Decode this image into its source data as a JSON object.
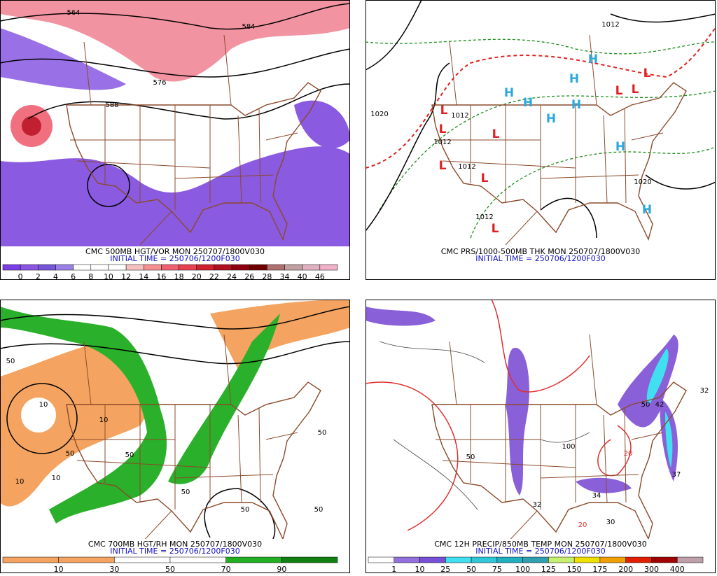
{
  "panels": [
    {
      "caption": "CMC 500MB HGT/VOR MON 250707/1800V030",
      "init": "INITIAL TIME = 250706/1200F030",
      "colorbar": {
        "labels": [
          "0",
          "2",
          "4",
          "6",
          "8",
          "10",
          "12",
          "14",
          "16",
          "18",
          "20",
          "22",
          "24",
          "26",
          "28",
          "34",
          "40",
          "46"
        ],
        "colors": [
          "#7b3ee6",
          "#8a55e0",
          "#7755d8",
          "#9a80e8",
          "#ffffff",
          "#ffffff",
          "#ffffff",
          "#f7c0c0",
          "#f59090",
          "#ee6070",
          "#e84050",
          "#d02030",
          "#b01020",
          "#900010",
          "#700000",
          "#b07070",
          "#c0a0a0",
          "#e0b0c0",
          "#f0b0c8"
        ]
      },
      "map_labels": [
        "564",
        "584",
        "576",
        "588"
      ]
    },
    {
      "caption": "CMC PRS/1000-500MB THK MON 250707/1800V030",
      "init": "INITIAL TIME = 250706/1200F030",
      "map_labels": [
        "1012",
        "1020",
        "1012",
        "1012",
        "1012",
        "1020",
        "1012",
        "H",
        "H",
        "H",
        "H",
        "H",
        "H",
        "H",
        "H",
        "L",
        "L",
        "L",
        "L",
        "L",
        "L",
        "L",
        "L",
        "L"
      ]
    },
    {
      "caption": "CMC 700MB HGT/RH MON 250707/1800V030",
      "init": "INITIAL TIME = 250706/1200F030",
      "colorbar": {
        "labels": [
          "10",
          "30",
          "50",
          "70",
          "90"
        ],
        "colors": [
          "#f4a460",
          "#f4a460",
          "#ffffff",
          "#ffffff",
          "#22b022",
          "#108010"
        ]
      },
      "map_labels": [
        "50",
        "10",
        "10",
        "50",
        "50",
        "50",
        "10",
        "50",
        "50",
        "50",
        "10"
      ]
    },
    {
      "caption": "CMC 12H PRECIP/850MB TEMP MON 250707/1800V030",
      "init": "INITIAL TIME = 250706/1200F030",
      "colorbar": {
        "labels": [
          "1",
          "10",
          "25",
          "50",
          "75",
          "100",
          "125",
          "150",
          "175",
          "200",
          "300",
          "400"
        ],
        "colors": [
          "#ffffff",
          "#9370db",
          "#7a4fd8",
          "#40e0f0",
          "#30c8d8",
          "#20b0c0",
          "#30a0b0",
          "#c8f070",
          "#f0e000",
          "#f0a000",
          "#e02000",
          "#a00000",
          "#c0a0a8"
        ]
      },
      "map_labels": [
        "100",
        "50",
        "30",
        "34",
        "42",
        "37",
        "32",
        "32",
        "20",
        "20",
        "50"
      ]
    }
  ]
}
